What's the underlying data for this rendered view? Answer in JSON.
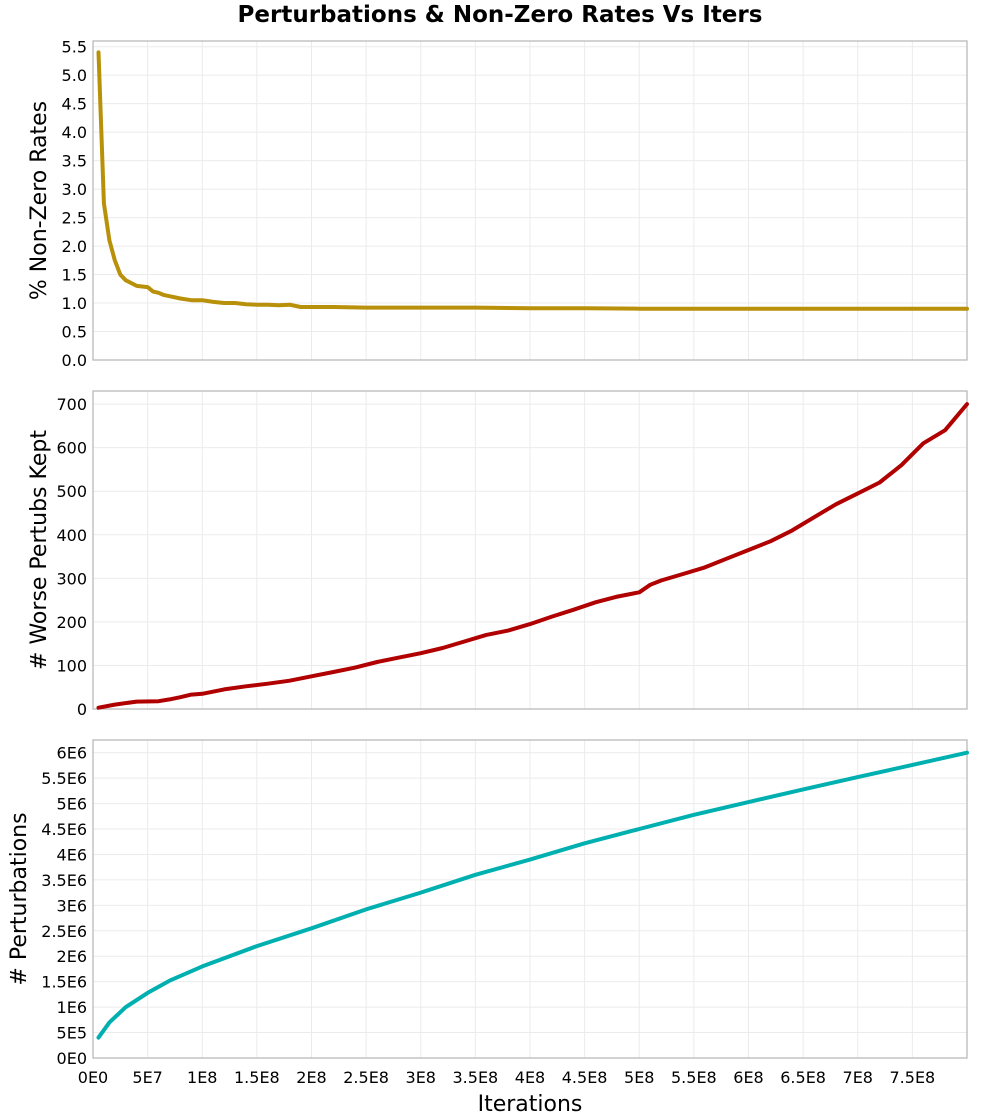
{
  "chart_data": {
    "title": "Perturbations & Non-Zero Rates Vs Iters",
    "type": "line",
    "xlabel": "Iterations",
    "x_ticks": [
      "0E0",
      "5E7",
      "1E8",
      "1.5E8",
      "2E8",
      "2.5E8",
      "3E8",
      "3.5E8",
      "4E8",
      "4.5E8",
      "5E8",
      "5.5E8",
      "6E8",
      "6.5E8",
      "7E8",
      "7.5E8"
    ],
    "xlim": [
      0,
      800000000
    ],
    "grid": true,
    "legend": "none",
    "panels": [
      {
        "ylabel": "% Non-Zero Rates",
        "color": "#b8900a",
        "ylim": [
          0,
          5.6
        ],
        "y_ticks": [
          "0.0",
          "0.5",
          "1.0",
          "1.5",
          "2.0",
          "2.5",
          "3.0",
          "3.5",
          "4.0",
          "4.5",
          "5.0",
          "5.5"
        ],
        "y_tick_values": [
          0,
          0.5,
          1,
          1.5,
          2,
          2.5,
          3,
          3.5,
          4,
          4.5,
          5,
          5.5
        ],
        "x": [
          5000000.0,
          10000000.0,
          15000000.0,
          20000000.0,
          25000000.0,
          30000000.0,
          40000000.0,
          50000000.0,
          55000000.0,
          60000000.0,
          65000000.0,
          70000000.0,
          80000000.0,
          90000000.0,
          100000000.0,
          110000000.0,
          120000000.0,
          130000000.0,
          140000000.0,
          150000000.0,
          160000000.0,
          170000000.0,
          180000000.0,
          190000000.0,
          200000000.0,
          220000000.0,
          250000000.0,
          280000000.0,
          300000000.0,
          350000000.0,
          400000000.0,
          450000000.0,
          500000000.0,
          550000000.0,
          600000000.0,
          650000000.0,
          700000000.0,
          750000000.0,
          800000000.0
        ],
        "values": [
          5.4,
          2.75,
          2.1,
          1.75,
          1.5,
          1.4,
          1.3,
          1.28,
          1.2,
          1.18,
          1.14,
          1.12,
          1.08,
          1.05,
          1.05,
          1.02,
          1.0,
          1.0,
          0.98,
          0.97,
          0.97,
          0.96,
          0.97,
          0.93,
          0.93,
          0.93,
          0.92,
          0.92,
          0.92,
          0.92,
          0.91,
          0.91,
          0.9,
          0.9,
          0.9,
          0.9,
          0.9,
          0.9,
          0.9
        ]
      },
      {
        "ylabel": "# Worse Pertubs Kept",
        "color": "#b00000",
        "ylim": [
          0,
          730
        ],
        "y_ticks": [
          "0",
          "100",
          "200",
          "300",
          "400",
          "500",
          "600",
          "700"
        ],
        "y_tick_values": [
          0,
          100,
          200,
          300,
          400,
          500,
          600,
          700
        ],
        "x": [
          5000000.0,
          20000000.0,
          40000000.0,
          60000000.0,
          70000000.0,
          80000000.0,
          90000000.0,
          100000000.0,
          120000000.0,
          140000000.0,
          160000000.0,
          180000000.0,
          200000000.0,
          220000000.0,
          240000000.0,
          260000000.0,
          280000000.0,
          300000000.0,
          320000000.0,
          340000000.0,
          360000000.0,
          380000000.0,
          400000000.0,
          420000000.0,
          440000000.0,
          460000000.0,
          480000000.0,
          500000000.0,
          510000000.0,
          520000000.0,
          540000000.0,
          560000000.0,
          580000000.0,
          600000000.0,
          620000000.0,
          640000000.0,
          660000000.0,
          680000000.0,
          700000000.0,
          720000000.0,
          740000000.0,
          760000000.0,
          780000000.0,
          800000000.0
        ],
        "values": [
          3,
          10,
          17,
          18,
          22,
          27,
          33,
          35,
          45,
          52,
          58,
          65,
          75,
          85,
          95,
          108,
          118,
          128,
          140,
          155,
          170,
          180,
          195,
          212,
          228,
          245,
          258,
          268,
          285,
          295,
          310,
          325,
          345,
          365,
          385,
          410,
          440,
          470,
          495,
          520,
          560,
          610,
          640,
          700
        ]
      },
      {
        "ylabel": "# Perturbations",
        "color": "#00b0b0",
        "ylim": [
          0,
          6250000
        ],
        "y_ticks": [
          "0E0",
          "5E5",
          "1E6",
          "1.5E6",
          "2E6",
          "2.5E6",
          "3E6",
          "3.5E6",
          "4E6",
          "4.5E6",
          "5E6",
          "5.5E6",
          "6E6"
        ],
        "y_tick_values": [
          0,
          500000,
          1000000,
          1500000,
          2000000,
          2500000,
          3000000,
          3500000,
          4000000,
          4500000,
          5000000,
          5500000,
          6000000
        ],
        "x": [
          5000000.0,
          15000000.0,
          30000000.0,
          50000000.0,
          70000000.0,
          100000000.0,
          150000000.0,
          200000000.0,
          250000000.0,
          300000000.0,
          350000000.0,
          400000000.0,
          450000000.0,
          500000000.0,
          550000000.0,
          600000000.0,
          650000000.0,
          700000000.0,
          750000000.0,
          800000000.0
        ],
        "values": [
          400000,
          700000,
          1000000,
          1280000,
          1520000,
          1800000,
          2200000,
          2550000,
          2920000,
          3250000,
          3600000,
          3900000,
          4220000,
          4500000,
          4780000,
          5030000,
          5280000,
          5520000,
          5760000,
          6000000
        ]
      }
    ]
  }
}
